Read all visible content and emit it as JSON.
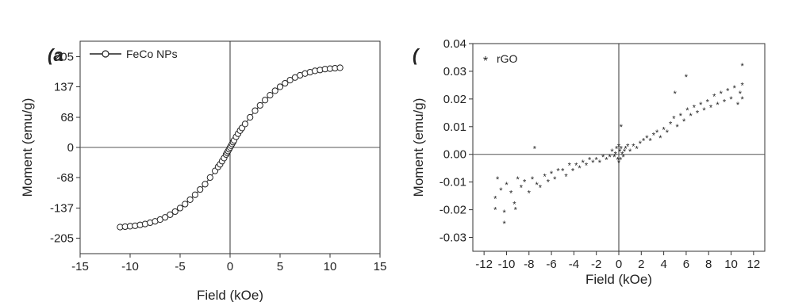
{
  "chart_data": [
    {
      "type": "scatter",
      "panel_label": "(a",
      "title": "",
      "xlabel": "Field (kOe)",
      "ylabel": "Moment (emu/g)",
      "xlim": [
        -15,
        15
      ],
      "ylim": [
        -240,
        240
      ],
      "x_ticks": [
        -15,
        -10,
        -5,
        0,
        5,
        10,
        15
      ],
      "x_tick_labels": [
        "-15",
        "-10",
        "-5",
        "0",
        "5",
        "10",
        "15"
      ],
      "y_ticks": [
        -205,
        -137,
        -68,
        0,
        68,
        137,
        205
      ],
      "y_tick_labels": [
        "-205",
        "-137",
        "-68",
        "0",
        "68",
        "137",
        "205"
      ],
      "zero_lines": true,
      "grid": false,
      "legend": "top-left",
      "series": [
        {
          "name": "FeCo NPs",
          "marker": "open-circle-line",
          "color": "#222222",
          "x": [
            -11,
            -10.5,
            -10,
            -9.5,
            -9,
            -8.5,
            -8,
            -7.5,
            -7,
            -6.5,
            -6,
            -5.5,
            -5,
            -4.5,
            -4,
            -3.5,
            -3,
            -2.5,
            -2,
            -1.5,
            -1.2,
            -1,
            -0.8,
            -0.6,
            -0.4,
            -0.3,
            -0.2,
            -0.1,
            0,
            0.1,
            0.2,
            0.3,
            0.4,
            0.6,
            0.8,
            1,
            1.2,
            1.5,
            2,
            2.5,
            3,
            3.5,
            4,
            4.5,
            5,
            5.5,
            6,
            6.5,
            7,
            7.5,
            8,
            8.5,
            9,
            9.5,
            10,
            10.5,
            11
          ],
          "y": [
            -180,
            -179,
            -178,
            -177,
            -175,
            -173,
            -170,
            -167,
            -163,
            -158,
            -152,
            -145,
            -137,
            -128,
            -118,
            -107,
            -95,
            -83,
            -68,
            -53,
            -44,
            -38,
            -31,
            -24,
            -16,
            -12,
            -8,
            -4,
            0,
            4,
            8,
            12,
            16,
            24,
            31,
            38,
            44,
            53,
            68,
            83,
            95,
            107,
            118,
            128,
            137,
            145,
            152,
            158,
            163,
            167,
            170,
            173,
            175,
            177,
            178,
            179,
            180
          ]
        }
      ]
    },
    {
      "type": "scatter",
      "panel_label": "(",
      "title": "",
      "xlabel": "Field (kOe)",
      "ylabel": "Moment (emu/g)",
      "xlim": [
        -13,
        13
      ],
      "ylim": [
        -0.035,
        0.04
      ],
      "x_ticks": [
        -12,
        -10,
        -8,
        -6,
        -4,
        -2,
        0,
        2,
        4,
        6,
        8,
        10,
        12
      ],
      "x_tick_labels": [
        "-12",
        "-10",
        "-8",
        "-6",
        "-4",
        "-2",
        "0",
        "2",
        "4",
        "6",
        "8",
        "10",
        "12"
      ],
      "y_ticks": [
        -0.03,
        -0.02,
        -0.01,
        0,
        0.01,
        0.02,
        0.03,
        0.04
      ],
      "y_tick_labels": [
        "-0.03",
        "-0.02",
        "-0.01",
        "0.00",
        "0.01",
        "0.02",
        "0.03",
        "0.04"
      ],
      "zero_lines": true,
      "grid": false,
      "legend": "top-left",
      "series": [
        {
          "name": "rGO",
          "marker": "star",
          "color": "#222222",
          "x": [
            -11,
            -11,
            -10.8,
            -10.5,
            -10.2,
            -10,
            -9.6,
            -9.3,
            -9,
            -8.7,
            -8.4,
            -8,
            -7.7,
            -7.3,
            -7,
            -6.6,
            -6.3,
            -6,
            -5.7,
            -5.4,
            -5,
            -4.7,
            -4.4,
            -4.1,
            -3.8,
            -3.5,
            -3.2,
            -2.9,
            -2.6,
            -2.3,
            -2,
            -1.7,
            -1.4,
            -1.1,
            -0.8,
            -0.6,
            -0.4,
            -0.3,
            -0.2,
            -0.1,
            0,
            0,
            0.1,
            0.15,
            0.2,
            0.3,
            0.4,
            0.5,
            0.6,
            0.8,
            1,
            1.3,
            1.6,
            1.9,
            2.2,
            2.5,
            2.8,
            3.1,
            3.4,
            3.7,
            4,
            4.3,
            4.6,
            4.9,
            5.2,
            5.5,
            5.8,
            6.1,
            6.4,
            6.7,
            7,
            7.3,
            7.6,
            7.9,
            8.2,
            8.5,
            8.8,
            9.1,
            9.4,
            9.7,
            10,
            10.3,
            10.6,
            10.8,
            11,
            11,
            11,
            -7.5,
            -10.2,
            -9.2,
            6,
            5,
            0.2
          ],
          "y": [
            -0.016,
            -0.02,
            -0.009,
            -0.013,
            -0.021,
            -0.011,
            -0.014,
            -0.018,
            -0.009,
            -0.012,
            -0.01,
            -0.014,
            -0.009,
            -0.011,
            -0.012,
            -0.008,
            -0.01,
            -0.007,
            -0.009,
            -0.006,
            -0.006,
            -0.008,
            -0.004,
            -0.006,
            -0.004,
            -0.005,
            -0.003,
            -0.004,
            -0.002,
            -0.003,
            -0.002,
            -0.003,
            -0.001,
            -0.002,
            -0.001,
            0.001,
            -0.001,
            0,
            0.002,
            -0.002,
            0.003,
            -0.003,
            0.001,
            -0.002,
            0.002,
            0,
            -0.001,
            0.001,
            0.002,
            0.003,
            0.001,
            0.003,
            0.002,
            0.004,
            0.005,
            0.006,
            0.005,
            0.007,
            0.008,
            0.006,
            0.009,
            0.008,
            0.011,
            0.013,
            0.01,
            0.014,
            0.012,
            0.016,
            0.014,
            0.017,
            0.015,
            0.018,
            0.016,
            0.019,
            0.017,
            0.021,
            0.018,
            0.022,
            0.019,
            0.023,
            0.02,
            0.024,
            0.018,
            0.022,
            0.025,
            0.02,
            0.032,
            0.002,
            -0.025,
            -0.02,
            0.028,
            0.022,
            0.01
          ]
        }
      ]
    }
  ]
}
